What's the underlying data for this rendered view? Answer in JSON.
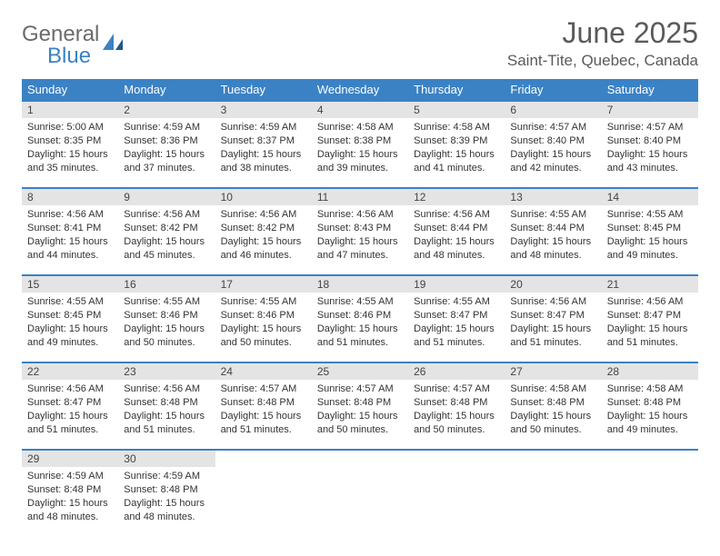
{
  "brand": {
    "word1": "General",
    "word2": "Blue"
  },
  "title": "June 2025",
  "location": "Saint-Tite, Quebec, Canada",
  "colors": {
    "accent": "#3b82c4",
    "header_bg": "#3b82c4",
    "daynum_bg": "#e4e4e4",
    "text": "#333333"
  },
  "weekdays": [
    "Sunday",
    "Monday",
    "Tuesday",
    "Wednesday",
    "Thursday",
    "Friday",
    "Saturday"
  ],
  "calendar": {
    "type": "table",
    "columns": 7,
    "rows": 5,
    "cell_fontsize": 11,
    "daynum_fontsize": 12
  },
  "days": [
    {
      "n": "1",
      "sunrise": "5:00 AM",
      "sunset": "8:35 PM",
      "daylight": "15 hours and 35 minutes."
    },
    {
      "n": "2",
      "sunrise": "4:59 AM",
      "sunset": "8:36 PM",
      "daylight": "15 hours and 37 minutes."
    },
    {
      "n": "3",
      "sunrise": "4:59 AM",
      "sunset": "8:37 PM",
      "daylight": "15 hours and 38 minutes."
    },
    {
      "n": "4",
      "sunrise": "4:58 AM",
      "sunset": "8:38 PM",
      "daylight": "15 hours and 39 minutes."
    },
    {
      "n": "5",
      "sunrise": "4:58 AM",
      "sunset": "8:39 PM",
      "daylight": "15 hours and 41 minutes."
    },
    {
      "n": "6",
      "sunrise": "4:57 AM",
      "sunset": "8:40 PM",
      "daylight": "15 hours and 42 minutes."
    },
    {
      "n": "7",
      "sunrise": "4:57 AM",
      "sunset": "8:40 PM",
      "daylight": "15 hours and 43 minutes."
    },
    {
      "n": "8",
      "sunrise": "4:56 AM",
      "sunset": "8:41 PM",
      "daylight": "15 hours and 44 minutes."
    },
    {
      "n": "9",
      "sunrise": "4:56 AM",
      "sunset": "8:42 PM",
      "daylight": "15 hours and 45 minutes."
    },
    {
      "n": "10",
      "sunrise": "4:56 AM",
      "sunset": "8:42 PM",
      "daylight": "15 hours and 46 minutes."
    },
    {
      "n": "11",
      "sunrise": "4:56 AM",
      "sunset": "8:43 PM",
      "daylight": "15 hours and 47 minutes."
    },
    {
      "n": "12",
      "sunrise": "4:56 AM",
      "sunset": "8:44 PM",
      "daylight": "15 hours and 48 minutes."
    },
    {
      "n": "13",
      "sunrise": "4:55 AM",
      "sunset": "8:44 PM",
      "daylight": "15 hours and 48 minutes."
    },
    {
      "n": "14",
      "sunrise": "4:55 AM",
      "sunset": "8:45 PM",
      "daylight": "15 hours and 49 minutes."
    },
    {
      "n": "15",
      "sunrise": "4:55 AM",
      "sunset": "8:45 PM",
      "daylight": "15 hours and 49 minutes."
    },
    {
      "n": "16",
      "sunrise": "4:55 AM",
      "sunset": "8:46 PM",
      "daylight": "15 hours and 50 minutes."
    },
    {
      "n": "17",
      "sunrise": "4:55 AM",
      "sunset": "8:46 PM",
      "daylight": "15 hours and 50 minutes."
    },
    {
      "n": "18",
      "sunrise": "4:55 AM",
      "sunset": "8:46 PM",
      "daylight": "15 hours and 51 minutes."
    },
    {
      "n": "19",
      "sunrise": "4:55 AM",
      "sunset": "8:47 PM",
      "daylight": "15 hours and 51 minutes."
    },
    {
      "n": "20",
      "sunrise": "4:56 AM",
      "sunset": "8:47 PM",
      "daylight": "15 hours and 51 minutes."
    },
    {
      "n": "21",
      "sunrise": "4:56 AM",
      "sunset": "8:47 PM",
      "daylight": "15 hours and 51 minutes."
    },
    {
      "n": "22",
      "sunrise": "4:56 AM",
      "sunset": "8:47 PM",
      "daylight": "15 hours and 51 minutes."
    },
    {
      "n": "23",
      "sunrise": "4:56 AM",
      "sunset": "8:48 PM",
      "daylight": "15 hours and 51 minutes."
    },
    {
      "n": "24",
      "sunrise": "4:57 AM",
      "sunset": "8:48 PM",
      "daylight": "15 hours and 51 minutes."
    },
    {
      "n": "25",
      "sunrise": "4:57 AM",
      "sunset": "8:48 PM",
      "daylight": "15 hours and 50 minutes."
    },
    {
      "n": "26",
      "sunrise": "4:57 AM",
      "sunset": "8:48 PM",
      "daylight": "15 hours and 50 minutes."
    },
    {
      "n": "27",
      "sunrise": "4:58 AM",
      "sunset": "8:48 PM",
      "daylight": "15 hours and 50 minutes."
    },
    {
      "n": "28",
      "sunrise": "4:58 AM",
      "sunset": "8:48 PM",
      "daylight": "15 hours and 49 minutes."
    },
    {
      "n": "29",
      "sunrise": "4:59 AM",
      "sunset": "8:48 PM",
      "daylight": "15 hours and 48 minutes."
    },
    {
      "n": "30",
      "sunrise": "4:59 AM",
      "sunset": "8:48 PM",
      "daylight": "15 hours and 48 minutes."
    }
  ],
  "labels": {
    "sunrise": "Sunrise:",
    "sunset": "Sunset:",
    "daylight": "Daylight:"
  }
}
